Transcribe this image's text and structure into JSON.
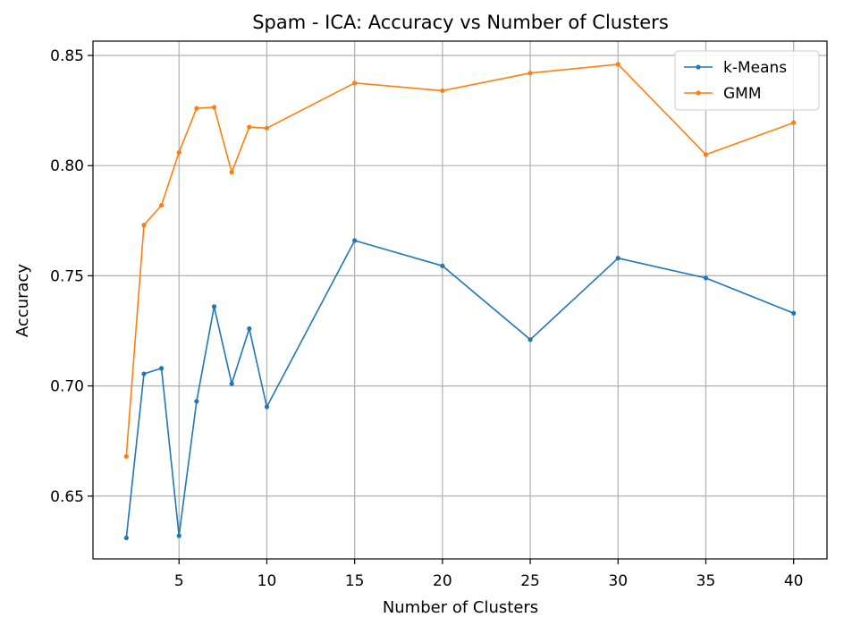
{
  "chart_data": {
    "type": "line",
    "title": "Spam - ICA: Accuracy vs Number of Clusters",
    "xlabel": "Number of Clusters",
    "ylabel": "Accuracy",
    "xlim": [
      0.1,
      41.9
    ],
    "ylim": [
      0.6215,
      0.8565
    ],
    "xticks": [
      5,
      10,
      15,
      20,
      25,
      30,
      35,
      40
    ],
    "yticks": [
      0.65,
      0.7,
      0.75,
      0.8,
      0.85
    ],
    "ytick_labels": [
      "0.65",
      "0.70",
      "0.75",
      "0.80",
      "0.85"
    ],
    "grid": true,
    "legend_position": "top-right",
    "x": [
      2,
      3,
      4,
      5,
      6,
      7,
      8,
      9,
      10,
      15,
      20,
      25,
      30,
      35,
      40
    ],
    "series": [
      {
        "name": "k-Means",
        "color": "#1f77b4",
        "values": [
          0.631,
          0.7055,
          0.708,
          0.632,
          0.693,
          0.736,
          0.701,
          0.726,
          0.6905,
          0.766,
          0.7545,
          0.721,
          0.758,
          0.749,
          0.733
        ]
      },
      {
        "name": "GMM",
        "color": "#ff7f0e",
        "values": [
          0.668,
          0.773,
          0.782,
          0.806,
          0.826,
          0.8265,
          0.797,
          0.8175,
          0.817,
          0.8375,
          0.834,
          0.842,
          0.846,
          0.805,
          0.8195
        ]
      }
    ]
  }
}
